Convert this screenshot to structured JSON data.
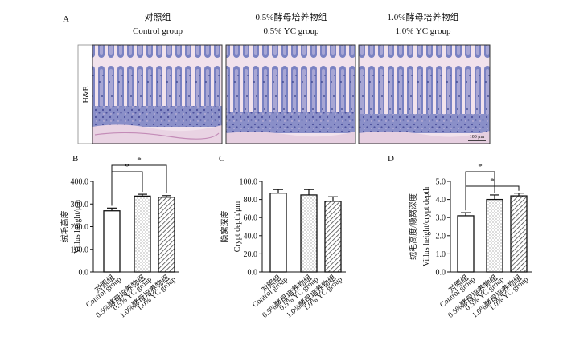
{
  "panel_a": {
    "label": "A",
    "headers": [
      {
        "cn": "对照组",
        "en": "Control group"
      },
      {
        "cn": "0.5%酵母培养物组",
        "en": "0.5% YC group"
      },
      {
        "cn": "1.0%酵母培养物组",
        "en": "1.0% YC group"
      }
    ],
    "stain_label": "H&E",
    "scale_bar_label": "100 μm"
  },
  "chart_data": [
    {
      "panel": "B",
      "type": "bar",
      "categories": [
        {
          "cn": "对照组",
          "en": "Control group"
        },
        {
          "cn": "0.5%酵母培养物组",
          "en": "0.5% YC group"
        },
        {
          "cn": "1.0%酵母培养物组",
          "en": "1.0% YC group"
        }
      ],
      "values": [
        270,
        335,
        330
      ],
      "errors": [
        12,
        8,
        7
      ],
      "ylabel_cn": "绒毛高度",
      "ylabel_en": "Villus height/μm",
      "ylim": [
        0,
        400
      ],
      "yticks": [
        0,
        100,
        200,
        300,
        400
      ],
      "ytick_labels": [
        "0.0",
        "100.0",
        "200.0",
        "300.0",
        "400.0"
      ],
      "patterns": [
        "open",
        "dots",
        "hatch"
      ],
      "significance": [
        {
          "from": 0,
          "to": 1,
          "label": "*"
        },
        {
          "from": 0,
          "to": 2,
          "label": "*"
        }
      ]
    },
    {
      "panel": "C",
      "type": "bar",
      "categories": [
        {
          "cn": "对照组",
          "en": "Control group"
        },
        {
          "cn": "0.5%酵母培养物组",
          "en": "0.5% YC group"
        },
        {
          "cn": "1.0%酵母培养物组",
          "en": "1.0% YC group"
        }
      ],
      "values": [
        87,
        85,
        78
      ],
      "errors": [
        4,
        6,
        5
      ],
      "ylabel_cn": "隐窝深度",
      "ylabel_en": "Crypt depth/μm",
      "ylim": [
        0,
        100
      ],
      "yticks": [
        0,
        20,
        40,
        60,
        80,
        100
      ],
      "ytick_labels": [
        "0.0",
        "20.0",
        "40.0",
        "60.0",
        "80.0",
        "100.0"
      ],
      "patterns": [
        "open",
        "dots",
        "hatch"
      ],
      "significance": []
    },
    {
      "panel": "D",
      "type": "bar",
      "categories": [
        {
          "cn": "对照组",
          "en": "Control group"
        },
        {
          "cn": "0.5%酵母培养物组",
          "en": "0.5% YC group"
        },
        {
          "cn": "1.0%酵母培养物组",
          "en": "1.0% YC group"
        }
      ],
      "values": [
        3.1,
        4.0,
        4.2
      ],
      "errors": [
        0.17,
        0.25,
        0.15
      ],
      "ylabel_cn": "绒毛高度/隐窝深度",
      "ylabel_en": "Villus height/crypt depth",
      "ylim": [
        0,
        5
      ],
      "yticks": [
        0,
        1,
        2,
        3,
        4,
        5
      ],
      "ytick_labels": [
        "0.0",
        "1.0",
        "2.0",
        "3.0",
        "4.0",
        "5.0"
      ],
      "patterns": [
        "open",
        "dots",
        "hatch"
      ],
      "significance": [
        {
          "from": 0,
          "to": 1,
          "label": "*"
        },
        {
          "from": 0,
          "to": 2,
          "label": "*"
        }
      ]
    }
  ]
}
